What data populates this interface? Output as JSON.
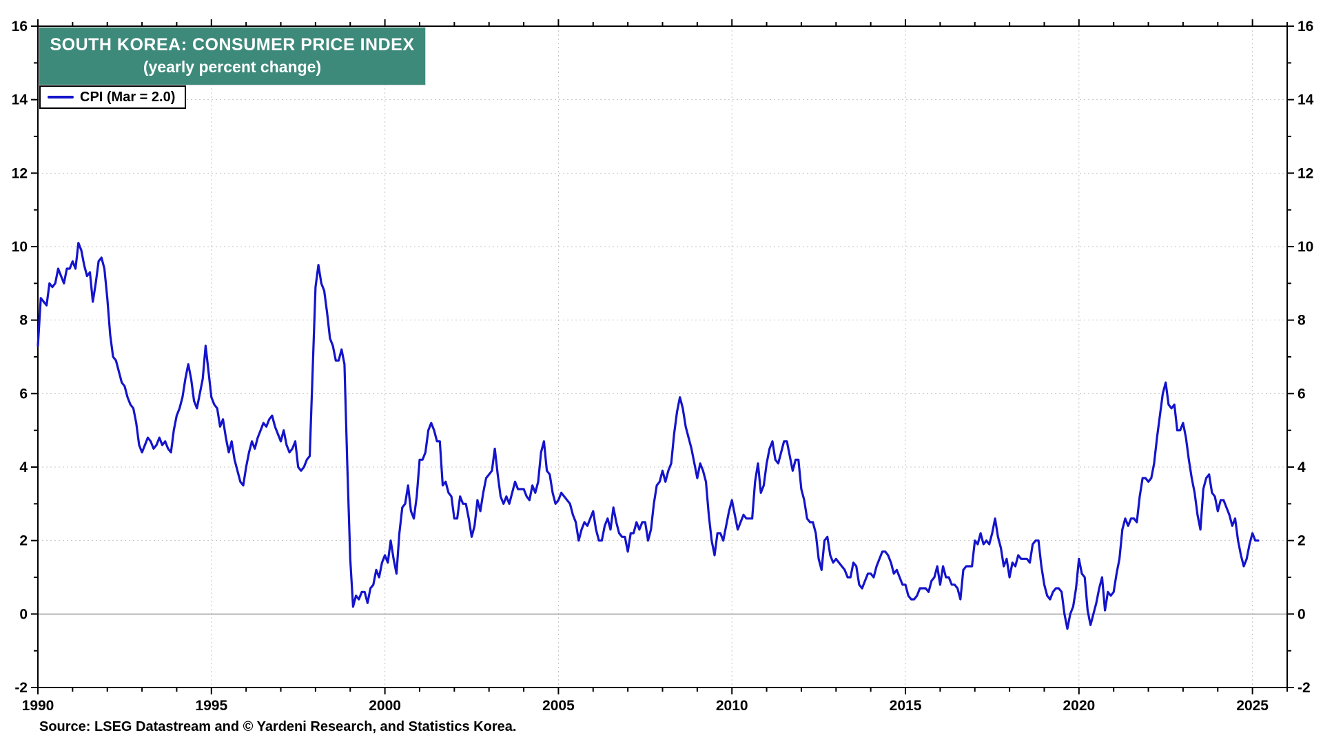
{
  "title": {
    "line1": "SOUTH KOREA: CONSUMER PRICE INDEX",
    "line2": "(yearly percent change)"
  },
  "legend": {
    "label": "CPI (Mar = 2.0)"
  },
  "source": "Source: LSEG Datastream and © Yardeni Research, and Statistics Korea.",
  "colors": {
    "line": "#1414CC",
    "title_bg": "#3D8A7B",
    "grid": "#c4c4c4",
    "zero_line": "#808080",
    "frame": "#000000",
    "tick_label": "#000000"
  },
  "axes": {
    "y_ticks": [
      -2,
      0,
      2,
      4,
      6,
      8,
      10,
      12,
      14,
      16
    ],
    "x_ticks": [
      1990,
      1995,
      2000,
      2005,
      2010,
      2015,
      2020,
      2025
    ],
    "y_minor_step": 1,
    "x_minor_step": 1
  },
  "chart_data": {
    "type": "line",
    "title": "SOUTH KOREA: CONSUMER PRICE INDEX (yearly percent change)",
    "xlabel": "",
    "ylabel": "yearly percent change",
    "xlim": [
      1990,
      2026
    ],
    "ylim": [
      -2,
      16
    ],
    "grid": true,
    "legend_position": "top-left",
    "series": [
      {
        "name": "CPI (Mar = 2.0)",
        "frequency": "monthly",
        "start_year": 1990,
        "start_month": 1,
        "end_label": "Mar 2025",
        "last_value": 2.0,
        "values": [
          7.3,
          8.6,
          8.5,
          8.4,
          9.0,
          8.9,
          9.0,
          9.4,
          9.2,
          9.0,
          9.4,
          9.4,
          9.6,
          9.4,
          10.1,
          9.9,
          9.5,
          9.2,
          9.3,
          8.5,
          9.0,
          9.6,
          9.7,
          9.4,
          8.6,
          7.6,
          7.0,
          6.9,
          6.6,
          6.3,
          6.2,
          5.9,
          5.7,
          5.6,
          5.2,
          4.6,
          4.4,
          4.6,
          4.8,
          4.7,
          4.5,
          4.6,
          4.8,
          4.6,
          4.7,
          4.5,
          4.4,
          5.0,
          5.4,
          5.6,
          5.9,
          6.4,
          6.8,
          6.4,
          5.8,
          5.6,
          6.0,
          6.4,
          7.3,
          6.6,
          5.9,
          5.7,
          5.6,
          5.1,
          5.3,
          4.8,
          4.4,
          4.7,
          4.2,
          3.9,
          3.6,
          3.5,
          4.0,
          4.4,
          4.7,
          4.5,
          4.8,
          5.0,
          5.2,
          5.1,
          5.3,
          5.4,
          5.1,
          4.9,
          4.7,
          5.0,
          4.6,
          4.4,
          4.5,
          4.7,
          4.0,
          3.9,
          4.0,
          4.2,
          4.3,
          6.6,
          8.9,
          9.5,
          9.0,
          8.8,
          8.2,
          7.5,
          7.3,
          6.9,
          6.9,
          7.2,
          6.8,
          4.0,
          1.5,
          0.2,
          0.5,
          0.4,
          0.6,
          0.6,
          0.3,
          0.7,
          0.8,
          1.2,
          1.0,
          1.4,
          1.6,
          1.4,
          2.0,
          1.5,
          1.1,
          2.2,
          2.9,
          3.0,
          3.5,
          2.8,
          2.6,
          3.2,
          4.2,
          4.2,
          4.4,
          5.0,
          5.2,
          5.0,
          4.7,
          4.7,
          3.5,
          3.6,
          3.3,
          3.2,
          2.6,
          2.6,
          3.2,
          3.0,
          3.0,
          2.6,
          2.1,
          2.4,
          3.1,
          2.8,
          3.3,
          3.7,
          3.8,
          3.9,
          4.5,
          3.8,
          3.2,
          3.0,
          3.2,
          3.0,
          3.3,
          3.6,
          3.4,
          3.4,
          3.4,
          3.2,
          3.1,
          3.5,
          3.3,
          3.6,
          4.4,
          4.7,
          3.9,
          3.8,
          3.3,
          3.0,
          3.1,
          3.3,
          3.2,
          3.1,
          3.0,
          2.7,
          2.5,
          2.0,
          2.3,
          2.5,
          2.4,
          2.6,
          2.8,
          2.3,
          2.0,
          2.0,
          2.4,
          2.6,
          2.3,
          2.9,
          2.5,
          2.2,
          2.1,
          2.1,
          1.7,
          2.2,
          2.2,
          2.5,
          2.3,
          2.5,
          2.5,
          2.0,
          2.3,
          3.0,
          3.5,
          3.6,
          3.9,
          3.6,
          3.9,
          4.1,
          4.9,
          5.5,
          5.9,
          5.6,
          5.1,
          4.8,
          4.5,
          4.1,
          3.7,
          4.1,
          3.9,
          3.6,
          2.7,
          2.0,
          1.6,
          2.2,
          2.2,
          2.0,
          2.4,
          2.8,
          3.1,
          2.7,
          2.3,
          2.5,
          2.7,
          2.6,
          2.6,
          2.6,
          3.6,
          4.1,
          3.3,
          3.5,
          4.1,
          4.5,
          4.7,
          4.2,
          4.1,
          4.4,
          4.7,
          4.7,
          4.3,
          3.9,
          4.2,
          4.2,
          3.4,
          3.1,
          2.6,
          2.5,
          2.5,
          2.2,
          1.5,
          1.2,
          2.0,
          2.1,
          1.6,
          1.4,
          1.5,
          1.4,
          1.3,
          1.2,
          1.0,
          1.0,
          1.4,
          1.3,
          0.8,
          0.7,
          0.9,
          1.1,
          1.1,
          1.0,
          1.3,
          1.5,
          1.7,
          1.7,
          1.6,
          1.4,
          1.1,
          1.2,
          1.0,
          0.8,
          0.8,
          0.5,
          0.4,
          0.4,
          0.5,
          0.7,
          0.7,
          0.7,
          0.6,
          0.9,
          1.0,
          1.3,
          0.8,
          1.3,
          1.0,
          1.0,
          0.8,
          0.8,
          0.7,
          0.4,
          1.2,
          1.3,
          1.3,
          1.3,
          2.0,
          1.9,
          2.2,
          1.9,
          2.0,
          1.9,
          2.2,
          2.6,
          2.1,
          1.8,
          1.3,
          1.5,
          1.0,
          1.4,
          1.3,
          1.6,
          1.5,
          1.5,
          1.5,
          1.4,
          1.9,
          2.0,
          2.0,
          1.3,
          0.8,
          0.5,
          0.4,
          0.6,
          0.7,
          0.7,
          0.6,
          0.0,
          -0.4,
          0.0,
          0.2,
          0.7,
          1.5,
          1.1,
          1.0,
          0.1,
          -0.3,
          0.0,
          0.3,
          0.7,
          1.0,
          0.1,
          0.6,
          0.5,
          0.6,
          1.1,
          1.5,
          2.3,
          2.6,
          2.4,
          2.6,
          2.6,
          2.5,
          3.2,
          3.7,
          3.7,
          3.6,
          3.7,
          4.1,
          4.8,
          5.4,
          6.0,
          6.3,
          5.7,
          5.6,
          5.7,
          5.0,
          5.0,
          5.2,
          4.8,
          4.2,
          3.7,
          3.3,
          2.7,
          2.3,
          3.4,
          3.7,
          3.8,
          3.3,
          3.2,
          2.8,
          3.1,
          3.1,
          2.9,
          2.7,
          2.4,
          2.6,
          2.0,
          1.6,
          1.3,
          1.5,
          1.9,
          2.2,
          2.0,
          2.0
        ]
      }
    ]
  }
}
